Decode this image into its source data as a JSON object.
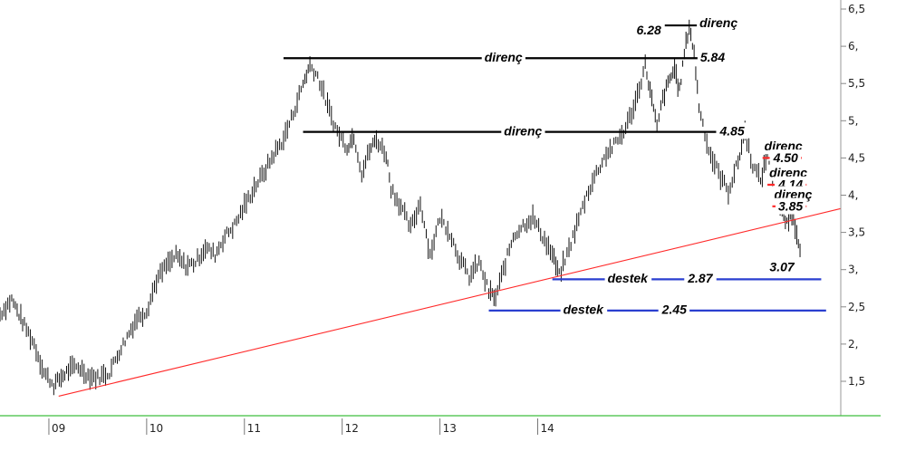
{
  "chart_data": {
    "type": "line",
    "title": "",
    "xlabel": "",
    "ylabel": "",
    "x_ticks": [
      "09",
      "10",
      "11",
      "12",
      "13",
      "14"
    ],
    "y_ticks": [
      "1,5",
      "2,",
      "2,5",
      "3,",
      "3,5",
      "4,",
      "4,5",
      "5,",
      "5,5",
      "6,",
      "6,5"
    ],
    "ylim": [
      1.0,
      6.5
    ],
    "grid": false,
    "series": [
      {
        "values": [
          [
            2008.0,
            2.4
          ],
          [
            2008.12,
            2.6
          ],
          [
            2008.25,
            2.25
          ],
          [
            2008.35,
            2.0
          ],
          [
            2008.45,
            1.62
          ],
          [
            2008.55,
            1.45
          ],
          [
            2008.7,
            1.65
          ],
          [
            2008.8,
            1.7
          ],
          [
            2008.9,
            1.58
          ],
          [
            2009.0,
            1.55
          ],
          [
            2009.12,
            1.62
          ],
          [
            2009.2,
            1.85
          ],
          [
            2009.3,
            2.1
          ],
          [
            2009.4,
            2.35
          ],
          [
            2009.5,
            2.45
          ],
          [
            2009.6,
            2.85
          ],
          [
            2009.7,
            3.05
          ],
          [
            2009.8,
            3.18
          ],
          [
            2009.9,
            3.05
          ],
          [
            2010.0,
            3.1
          ],
          [
            2010.1,
            3.3
          ],
          [
            2010.2,
            3.2
          ],
          [
            2010.3,
            3.45
          ],
          [
            2010.4,
            3.6
          ],
          [
            2010.5,
            3.85
          ],
          [
            2010.6,
            4.1
          ],
          [
            2010.7,
            4.3
          ],
          [
            2010.8,
            4.55
          ],
          [
            2010.9,
            4.75
          ],
          [
            2011.0,
            5.1
          ],
          [
            2011.1,
            5.5
          ],
          [
            2011.17,
            5.75
          ],
          [
            2011.25,
            5.6
          ],
          [
            2011.35,
            5.2
          ],
          [
            2011.45,
            4.85
          ],
          [
            2011.55,
            4.65
          ],
          [
            2011.62,
            4.8
          ],
          [
            2011.7,
            4.3
          ],
          [
            2011.78,
            4.6
          ],
          [
            2011.85,
            4.75
          ],
          [
            2011.95,
            4.55
          ],
          [
            2012.0,
            4.1
          ],
          [
            2012.1,
            3.85
          ],
          [
            2012.2,
            3.55
          ],
          [
            2012.3,
            3.9
          ],
          [
            2012.4,
            3.2
          ],
          [
            2012.5,
            3.7
          ],
          [
            2012.6,
            3.5
          ],
          [
            2012.7,
            3.15
          ],
          [
            2012.8,
            2.9
          ],
          [
            2012.9,
            3.1
          ],
          [
            2013.0,
            2.7
          ],
          [
            2013.07,
            2.62
          ],
          [
            2013.15,
            3.0
          ],
          [
            2013.25,
            3.45
          ],
          [
            2013.35,
            3.6
          ],
          [
            2013.45,
            3.7
          ],
          [
            2013.55,
            3.45
          ],
          [
            2013.65,
            3.2
          ],
          [
            2013.72,
            2.92
          ],
          [
            2013.8,
            3.2
          ],
          [
            2013.9,
            3.6
          ],
          [
            2014.0,
            4.0
          ],
          [
            2014.1,
            4.3
          ],
          [
            2014.2,
            4.55
          ],
          [
            2014.3,
            4.7
          ],
          [
            2014.4,
            4.9
          ],
          [
            2014.5,
            5.25
          ],
          [
            2014.6,
            5.75
          ],
          [
            2014.65,
            5.4
          ],
          [
            2014.72,
            4.9
          ],
          [
            2014.78,
            5.3
          ],
          [
            2014.85,
            5.55
          ],
          [
            2014.9,
            5.7
          ],
          [
            2014.95,
            5.4
          ],
          [
            2015.0,
            5.9
          ],
          [
            2015.05,
            6.28
          ],
          [
            2015.1,
            5.9
          ],
          [
            2015.15,
            5.2
          ],
          [
            2015.25,
            4.6
          ],
          [
            2015.35,
            4.3
          ],
          [
            2015.45,
            4.05
          ],
          [
            2015.55,
            4.45
          ],
          [
            2015.62,
            4.85
          ],
          [
            2015.7,
            4.4
          ],
          [
            2015.78,
            4.2
          ],
          [
            2015.85,
            4.55
          ],
          [
            2015.92,
            4.0
          ],
          [
            2016.0,
            3.8
          ],
          [
            2016.05,
            3.6
          ],
          [
            2016.1,
            3.75
          ],
          [
            2016.15,
            3.5
          ],
          [
            2016.2,
            3.2
          ]
        ]
      }
    ],
    "trendline": {
      "color": "#ff2a2a",
      "from": [
        2008.6,
        1.3
      ],
      "to": [
        2016.6,
        3.82
      ]
    },
    "levels": [
      {
        "kind": "direnç",
        "label": "direnç",
        "value": "6.28",
        "y": 6.28,
        "x0": 2014.8,
        "x1": 2015.35,
        "color": "#000000"
      },
      {
        "kind": "direnç",
        "label": "direnç",
        "value": "5.84",
        "y": 5.84,
        "x0": 2010.9,
        "x1": 2015.4,
        "color": "#000000"
      },
      {
        "kind": "direnç",
        "label": "direnç",
        "value": "4.85",
        "y": 4.85,
        "x0": 2011.1,
        "x1": 2015.6,
        "color": "#000000"
      },
      {
        "kind": "direnç",
        "label": "direnç",
        "value": "4.50",
        "y": 4.5,
        "x0": 2015.8,
        "x1": 2016.2,
        "color": "#ff2a2a"
      },
      {
        "kind": "direnç",
        "label": "direnç",
        "value": "4.14",
        "y": 4.14,
        "x0": 2015.85,
        "x1": 2016.25,
        "color": "#ff2a2a"
      },
      {
        "kind": "direnç",
        "label": "direnç",
        "value": "3.85",
        "y": 3.85,
        "x0": 2015.9,
        "x1": 2016.25,
        "color": "#ff2a2a"
      },
      {
        "kind": "destek",
        "label": "destek",
        "value": "2.87",
        "y": 2.87,
        "x0": 2013.65,
        "x1": 2016.4,
        "color": "#2a3fd0"
      },
      {
        "kind": "destek",
        "label": "destek",
        "value": "2.45",
        "y": 2.45,
        "x0": 2013.0,
        "x1": 2016.45,
        "color": "#2a3fd0"
      }
    ],
    "low_label": {
      "value": "3.07",
      "x": 2016.18,
      "y": 3.07
    }
  }
}
